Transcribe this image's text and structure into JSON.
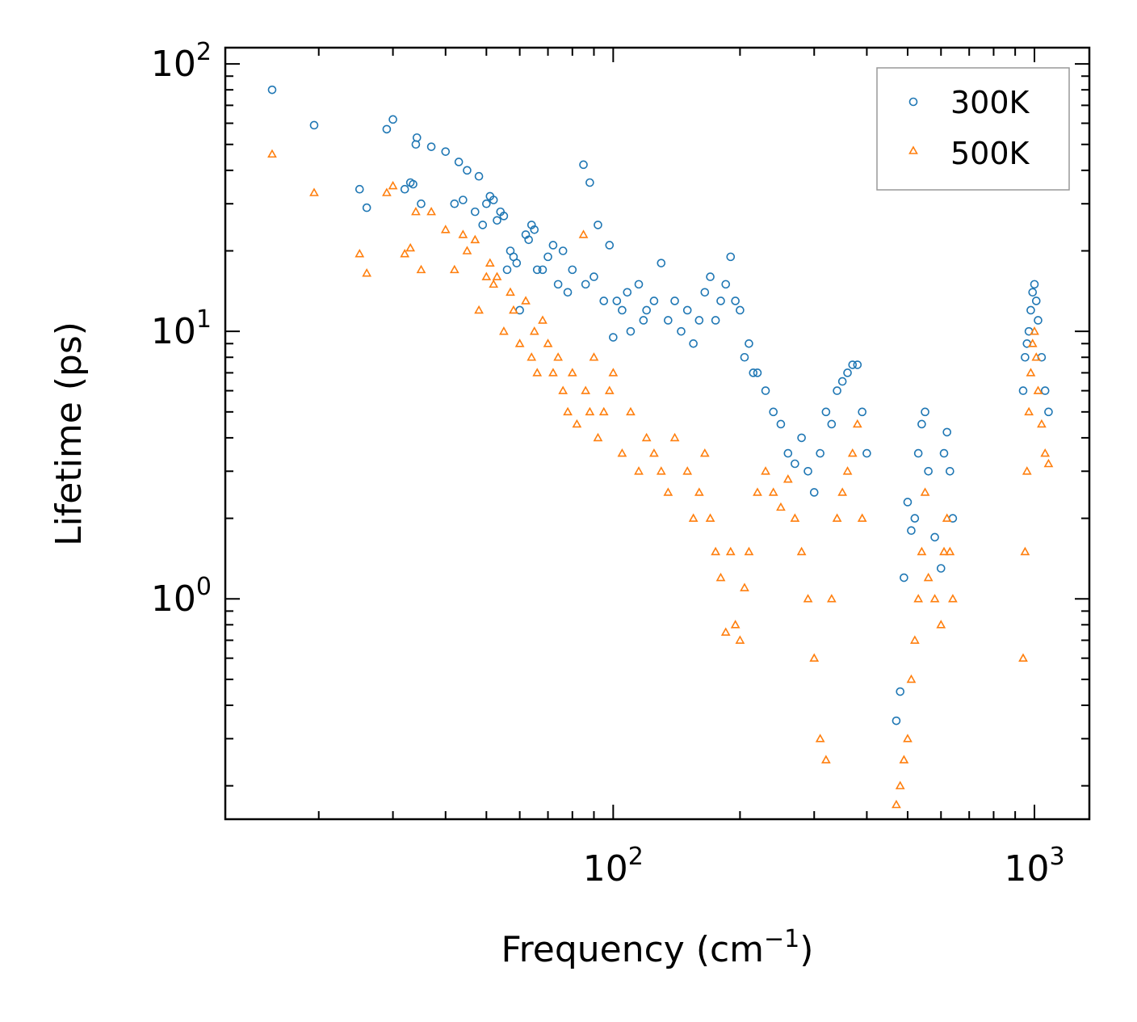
{
  "chart_data": {
    "type": "scatter",
    "title": "",
    "xlabel": "Frequency (cm",
    "xlabel_superscript": "−1",
    "xlabel_suffix": ")",
    "ylabel": "Lifetime (ps)",
    "xscale": "log",
    "yscale": "log",
    "xlim": [
      12,
      1350
    ],
    "ylim": [
      0.15,
      115
    ],
    "x_ticks": [
      {
        "base": "10",
        "exp": "2",
        "value": 100
      },
      {
        "base": "10",
        "exp": "3",
        "value": 1000
      }
    ],
    "y_ticks": [
      {
        "base": "10",
        "exp": "0",
        "value": 1
      },
      {
        "base": "10",
        "exp": "1",
        "value": 10
      },
      {
        "base": "10",
        "exp": "2",
        "value": 100
      }
    ],
    "legend": {
      "position": "top-right"
    },
    "series": [
      {
        "name": "300K",
        "marker": "circle",
        "color": "#1f77b4",
        "points": [
          [
            15.5,
            80
          ],
          [
            19.5,
            59
          ],
          [
            25,
            34
          ],
          [
            26,
            29
          ],
          [
            29,
            57
          ],
          [
            30,
            62
          ],
          [
            32,
            34
          ],
          [
            33,
            36
          ],
          [
            33.5,
            35.5
          ],
          [
            34,
            50
          ],
          [
            34.2,
            53
          ],
          [
            35,
            30
          ],
          [
            37,
            49
          ],
          [
            40,
            47
          ],
          [
            42,
            30
          ],
          [
            43,
            43
          ],
          [
            44,
            31
          ],
          [
            45,
            40
          ],
          [
            47,
            28
          ],
          [
            48,
            38
          ],
          [
            49,
            25
          ],
          [
            50,
            30
          ],
          [
            51,
            32
          ],
          [
            52,
            31
          ],
          [
            53,
            26
          ],
          [
            54,
            28
          ],
          [
            55,
            27
          ],
          [
            56,
            17
          ],
          [
            57,
            20
          ],
          [
            58,
            19
          ],
          [
            59,
            18
          ],
          [
            60,
            12
          ],
          [
            62,
            23
          ],
          [
            63,
            22
          ],
          [
            64,
            25
          ],
          [
            65,
            24
          ],
          [
            66,
            17
          ],
          [
            68,
            17
          ],
          [
            70,
            19
          ],
          [
            72,
            21
          ],
          [
            74,
            15
          ],
          [
            76,
            20
          ],
          [
            78,
            14
          ],
          [
            80,
            17
          ],
          [
            85,
            42
          ],
          [
            86,
            15
          ],
          [
            88,
            36
          ],
          [
            90,
            16
          ],
          [
            92,
            25
          ],
          [
            95,
            13
          ],
          [
            98,
            21
          ],
          [
            100,
            9.5
          ],
          [
            102,
            13
          ],
          [
            105,
            12
          ],
          [
            108,
            14
          ],
          [
            110,
            10
          ],
          [
            115,
            15
          ],
          [
            118,
            11
          ],
          [
            120,
            12
          ],
          [
            125,
            13
          ],
          [
            130,
            18
          ],
          [
            135,
            11
          ],
          [
            140,
            13
          ],
          [
            145,
            10
          ],
          [
            150,
            12
          ],
          [
            155,
            9
          ],
          [
            160,
            11
          ],
          [
            165,
            14
          ],
          [
            170,
            16
          ],
          [
            175,
            11
          ],
          [
            180,
            13
          ],
          [
            185,
            15
          ],
          [
            190,
            19
          ],
          [
            195,
            13
          ],
          [
            200,
            12
          ],
          [
            205,
            8
          ],
          [
            210,
            9
          ],
          [
            215,
            7
          ],
          [
            220,
            7
          ],
          [
            230,
            6
          ],
          [
            240,
            5
          ],
          [
            250,
            4.5
          ],
          [
            260,
            3.5
          ],
          [
            270,
            3.2
          ],
          [
            280,
            4
          ],
          [
            290,
            3
          ],
          [
            300,
            2.5
          ],
          [
            310,
            3.5
          ],
          [
            320,
            5
          ],
          [
            330,
            4.5
          ],
          [
            340,
            6
          ],
          [
            350,
            6.5
          ],
          [
            360,
            7
          ],
          [
            370,
            7.5
          ],
          [
            380,
            7.5
          ],
          [
            390,
            5
          ],
          [
            400,
            3.5
          ],
          [
            470,
            0.35
          ],
          [
            480,
            0.45
          ],
          [
            490,
            1.2
          ],
          [
            500,
            2.3
          ],
          [
            510,
            1.8
          ],
          [
            520,
            2
          ],
          [
            530,
            3.5
          ],
          [
            540,
            4.5
          ],
          [
            550,
            5
          ],
          [
            560,
            3
          ],
          [
            580,
            1.7
          ],
          [
            600,
            1.3
          ],
          [
            610,
            3.5
          ],
          [
            620,
            4.2
          ],
          [
            630,
            3
          ],
          [
            640,
            2
          ],
          [
            940,
            6
          ],
          [
            950,
            8
          ],
          [
            960,
            9
          ],
          [
            970,
            10
          ],
          [
            980,
            12
          ],
          [
            990,
            14
          ],
          [
            1000,
            15
          ],
          [
            1010,
            13
          ],
          [
            1020,
            11
          ],
          [
            1040,
            8
          ],
          [
            1060,
            6
          ],
          [
            1080,
            5
          ]
        ]
      },
      {
        "name": "500K",
        "marker": "triangle",
        "color": "#ff7f0e",
        "points": [
          [
            15.5,
            46
          ],
          [
            19.5,
            33
          ],
          [
            25,
            19.5
          ],
          [
            26,
            16.5
          ],
          [
            29,
            33
          ],
          [
            30,
            35
          ],
          [
            32,
            19.5
          ],
          [
            33,
            20.5
          ],
          [
            34,
            28
          ],
          [
            35,
            17
          ],
          [
            37,
            28
          ],
          [
            40,
            24
          ],
          [
            42,
            17
          ],
          [
            44,
            23
          ],
          [
            45,
            20
          ],
          [
            47,
            22
          ],
          [
            48,
            12
          ],
          [
            50,
            16
          ],
          [
            51,
            18
          ],
          [
            52,
            15
          ],
          [
            53,
            16
          ],
          [
            55,
            10
          ],
          [
            57,
            14
          ],
          [
            58,
            12
          ],
          [
            60,
            9
          ],
          [
            62,
            13
          ],
          [
            64,
            8
          ],
          [
            65,
            10
          ],
          [
            66,
            7
          ],
          [
            68,
            11
          ],
          [
            70,
            9
          ],
          [
            72,
            7
          ],
          [
            74,
            8
          ],
          [
            76,
            6
          ],
          [
            78,
            5
          ],
          [
            80,
            7
          ],
          [
            82,
            4.5
          ],
          [
            85,
            23
          ],
          [
            86,
            6
          ],
          [
            88,
            5
          ],
          [
            90,
            8
          ],
          [
            92,
            4
          ],
          [
            95,
            5
          ],
          [
            98,
            6
          ],
          [
            100,
            7
          ],
          [
            105,
            3.5
          ],
          [
            110,
            5
          ],
          [
            115,
            3
          ],
          [
            120,
            4
          ],
          [
            125,
            3.5
          ],
          [
            130,
            3
          ],
          [
            135,
            2.5
          ],
          [
            140,
            4
          ],
          [
            150,
            3
          ],
          [
            155,
            2
          ],
          [
            160,
            2.5
          ],
          [
            165,
            3.5
          ],
          [
            170,
            2
          ],
          [
            175,
            1.5
          ],
          [
            180,
            1.2
          ],
          [
            185,
            0.75
          ],
          [
            190,
            1.5
          ],
          [
            195,
            0.8
          ],
          [
            200,
            0.7
          ],
          [
            205,
            1.1
          ],
          [
            210,
            1.5
          ],
          [
            220,
            2.5
          ],
          [
            230,
            3
          ],
          [
            240,
            2.5
          ],
          [
            250,
            2.2
          ],
          [
            260,
            2.8
          ],
          [
            270,
            2
          ],
          [
            280,
            1.5
          ],
          [
            290,
            1
          ],
          [
            300,
            0.6
          ],
          [
            310,
            0.3
          ],
          [
            320,
            0.25
          ],
          [
            330,
            1
          ],
          [
            340,
            2
          ],
          [
            350,
            2.5
          ],
          [
            360,
            3
          ],
          [
            370,
            3.5
          ],
          [
            380,
            4.5
          ],
          [
            390,
            2
          ],
          [
            470,
            0.17
          ],
          [
            480,
            0.2
          ],
          [
            490,
            0.25
          ],
          [
            500,
            0.3
          ],
          [
            510,
            0.5
          ],
          [
            520,
            0.7
          ],
          [
            530,
            1
          ],
          [
            540,
            1.5
          ],
          [
            550,
            2.5
          ],
          [
            560,
            1.2
          ],
          [
            580,
            1
          ],
          [
            600,
            0.8
          ],
          [
            610,
            1.5
          ],
          [
            620,
            2
          ],
          [
            630,
            1.5
          ],
          [
            640,
            1
          ],
          [
            940,
            0.6
          ],
          [
            950,
            1.5
          ],
          [
            960,
            3
          ],
          [
            970,
            5
          ],
          [
            980,
            7
          ],
          [
            990,
            9
          ],
          [
            1000,
            10
          ],
          [
            1010,
            8
          ],
          [
            1020,
            6
          ],
          [
            1040,
            4.5
          ],
          [
            1060,
            3.5
          ],
          [
            1080,
            3.2
          ]
        ]
      }
    ]
  }
}
